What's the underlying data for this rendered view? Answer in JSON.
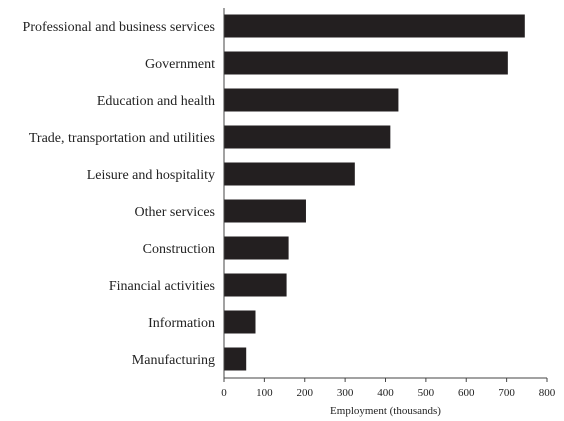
{
  "chart_data": {
    "type": "bar",
    "orientation": "horizontal",
    "title": "",
    "xlabel": "Employment (thousands)",
    "ylabel": "",
    "categories": [
      "Professional and business services",
      "Government",
      "Education and health",
      "Trade, transportation and utilities",
      "Leisure and hospitality",
      "Other services",
      "Construction",
      "Financial activities",
      "Information",
      "Manufacturing"
    ],
    "values": [
      745,
      703,
      432,
      412,
      324,
      203,
      160,
      155,
      78,
      55
    ],
    "xlim": [
      0,
      800
    ],
    "xticks": [
      0,
      100,
      200,
      300,
      400,
      500,
      600,
      700,
      800
    ],
    "grid": false,
    "legend": "none",
    "bar_color": "#231f20"
  }
}
